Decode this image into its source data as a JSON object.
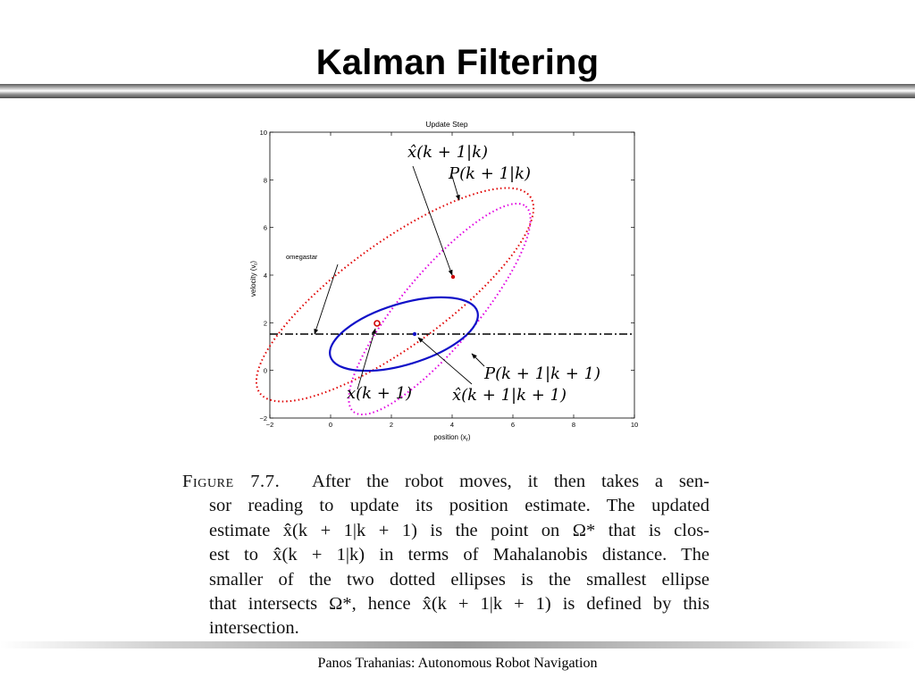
{
  "slide": {
    "title": "Kalman Filtering",
    "footer": "Panos Trahanias: Autonomous Robot Navigation"
  },
  "figure": {
    "plot_title": "Update Step",
    "xlabel": "position (x",
    "xlabel_sub": "r",
    "xlabel_end": ")",
    "ylabel": "velocity (v",
    "ylabel_sub": "r",
    "ylabel_end": ")",
    "xticks": [
      "−2",
      "0",
      "2",
      "4",
      "6",
      "8",
      "10"
    ],
    "yticks": [
      "−2",
      "0",
      "2",
      "4",
      "6",
      "8",
      "10"
    ],
    "xlim": [
      -2,
      10
    ],
    "ylim": [
      -2,
      10
    ],
    "omega_label": "omegastar",
    "annotations": {
      "xhat_pred": "x̂(k + 1|k)",
      "P_pred": "P(k + 1|k)",
      "P_upd": "P(k + 1|k + 1)",
      "z": "x(k + 1)",
      "xhat_upd": "x̂(k + 1|k + 1)"
    },
    "colors": {
      "pred_ellipse": "#e00000",
      "inner_ellipse": "#e000e0",
      "update_ellipse": "#1010c8",
      "omega_line": "#000000"
    }
  },
  "caption": {
    "label": "Figure 7.7.",
    "lines": [
      "After the robot moves, it then takes a sen-",
      "sor reading to update its position estimate. The updated",
      "estimate x̂(k + 1|k + 1) is the point on Ω* that is clos-",
      "est to x̂(k + 1|k) in terms of Mahalanobis distance. The",
      "smaller of the two dotted ellipses is the smallest ellipse",
      "that intersects Ω*, hence x̂(k + 1|k + 1) is defined by this",
      "intersection."
    ]
  }
}
